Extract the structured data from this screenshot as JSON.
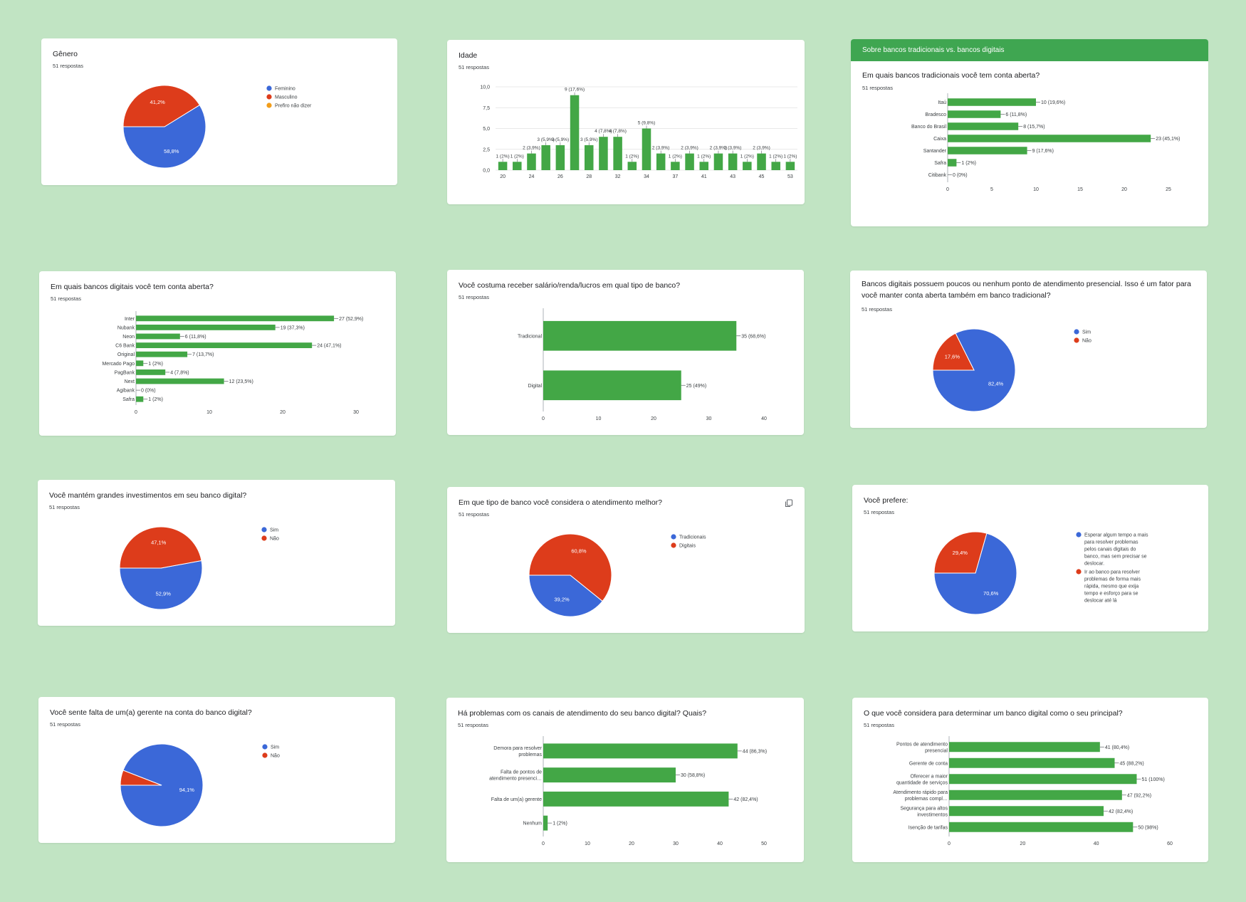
{
  "colors": {
    "green": "#43a746",
    "blue": "#3b68d8",
    "red": "#dd3c1b",
    "orange": "#f29d1a",
    "header": "#3fa651"
  },
  "icons": {
    "copy": "copy-icon"
  },
  "section_header": "Sobre bancos tradicionais vs. bancos digitais",
  "chart_data": [
    {
      "id": "genero",
      "type": "pie",
      "title": "Gênero",
      "responses": "51 respostas",
      "legend_position": "right",
      "slices": [
        {
          "name": "Feminino",
          "value": 58.8,
          "label": "58,8%"
        },
        {
          "name": "Masculino",
          "value": 41.2,
          "label": "41,2%"
        },
        {
          "name": "Prefiro não dizer",
          "value": 0,
          "label": ""
        }
      ]
    },
    {
      "id": "idade",
      "type": "bar",
      "title": "Idade",
      "responses": "51 respostas",
      "ylim": [
        0,
        10
      ],
      "yticks": [
        "0,0",
        "2,5",
        "5,0",
        "7,5",
        "10,0"
      ],
      "xtick_labels": [
        "20",
        "24",
        "26",
        "28",
        "32",
        "34",
        "37",
        "41",
        "43",
        "45",
        "53"
      ],
      "values": [
        1,
        1,
        2,
        3,
        3,
        9,
        3,
        4,
        4,
        1,
        5,
        2,
        1,
        2,
        1,
        2,
        2,
        1,
        2,
        1,
        1
      ],
      "labels": [
        "1 (2%)",
        "1 (2%)",
        "2 (3,9%)",
        "3 (5,9%)",
        "3 (5,9%)",
        "9 (17,6%)",
        "3 (5,9%)",
        "4 (7,8%)",
        "4 (7,8%)",
        "1 (2%)",
        "5 (9,8%)",
        "2 (3,9%)",
        "1 (2%)",
        "2 (3,9%)",
        "1 (2%)",
        "2 (3,9%)",
        "2 (3,9%)",
        "1 (2%)",
        "2 (3,9%)",
        "1 (2%)",
        "1 (2%)"
      ]
    },
    {
      "id": "tradicionais",
      "type": "hbar",
      "title": "Em quais bancos tradicionais você tem conta aberta?",
      "responses": "51 respostas",
      "xlim": [
        0,
        25
      ],
      "xticks": [
        0,
        5,
        10,
        15,
        20,
        25
      ],
      "categories": [
        "Itaú",
        "Bradesco",
        "Banco do Brasil",
        "Caixa",
        "Santander",
        "Safra",
        "Citibank"
      ],
      "values": [
        10,
        6,
        8,
        23,
        9,
        1,
        0
      ],
      "labels": [
        "10 (19,6%)",
        "6 (11,8%)",
        "8 (15,7%)",
        "23 (45,1%)",
        "9 (17,6%)",
        "1 (2%)",
        "0 (0%)"
      ]
    },
    {
      "id": "digitais",
      "type": "hbar",
      "title": "Em quais bancos digitais você tem conta aberta?",
      "responses": "51 respostas",
      "xlim": [
        0,
        30
      ],
      "xticks": [
        0,
        10,
        20,
        30
      ],
      "categories": [
        "Inter",
        "Nubank",
        "Neon",
        "C6 Bank",
        "Original",
        "Mercado Pago",
        "PagBank",
        "Next",
        "Agibank",
        "Safra"
      ],
      "values": [
        27,
        19,
        6,
        24,
        7,
        1,
        4,
        12,
        0,
        1
      ],
      "labels": [
        "27 (52,9%)",
        "19 (37,3%)",
        "6 (11,8%)",
        "24 (47,1%)",
        "7 (13,7%)",
        "1 (2%)",
        "4 (7,8%)",
        "12 (23,5%)",
        "0 (0%)",
        "1 (2%)"
      ]
    },
    {
      "id": "salario",
      "type": "hbar",
      "title": "Você costuma receber salário/renda/lucros em qual tipo de banco?",
      "responses": "51 respostas",
      "xlim": [
        0,
        40
      ],
      "xticks": [
        0,
        10,
        20,
        30,
        40
      ],
      "categories": [
        "Tradicional",
        "Digital"
      ],
      "values": [
        35,
        25
      ],
      "labels": [
        "35 (68,6%)",
        "25 (49%)"
      ]
    },
    {
      "id": "atendimento_presencial",
      "type": "pie",
      "title": "Bancos digitais possuem poucos ou nenhum ponto de atendimento presencial. Isso é um fator para você manter conta aberta também em banco tradicional?",
      "responses": "51 respostas",
      "legend_position": "right",
      "slices": [
        {
          "name": "Sim",
          "value": 82.4,
          "label": "82,4%"
        },
        {
          "name": "Não",
          "value": 17.6,
          "label": "17,6%"
        }
      ]
    },
    {
      "id": "investimentos",
      "type": "pie",
      "title": "Você mantém grandes investimentos em seu banco digital?",
      "responses": "51 respostas",
      "legend_position": "right",
      "slices": [
        {
          "name": "Sim",
          "value": 52.9,
          "label": "52,9%"
        },
        {
          "name": "Não",
          "value": 47.1,
          "label": "47,1%"
        }
      ]
    },
    {
      "id": "atendimento_melhor",
      "type": "pie",
      "title": "Em que tipo de banco você considera o atendimento melhor?",
      "responses": "51 respostas",
      "legend_position": "right",
      "slices": [
        {
          "name": "Tradicionais",
          "value": 39.2,
          "label": "39,2%"
        },
        {
          "name": "Digitais",
          "value": 60.8,
          "label": "60,8%"
        }
      ]
    },
    {
      "id": "prefere",
      "type": "pie",
      "title": "Você prefere:",
      "responses": "51 respostas",
      "legend_position": "right",
      "slices": [
        {
          "name": "Esperar algum tempo a mais para resolver problemas pelos canais digitais do banco, mas sem precisar se deslocar.",
          "value": 70.6,
          "label": "70,6%"
        },
        {
          "name": "Ir ao banco para resolver problemas de forma mais rápida, mesmo que exija tempo e esforço para se deslocar até lá",
          "value": 29.4,
          "label": "29,4%"
        }
      ]
    },
    {
      "id": "gerente",
      "type": "pie",
      "title": "Você sente falta de um(a) gerente na conta do banco digital?",
      "responses": "51 respostas",
      "legend_position": "right",
      "slices": [
        {
          "name": "Sim",
          "value": 94.1,
          "label": "94,1%"
        },
        {
          "name": "Não",
          "value": 5.9,
          "label": ""
        }
      ]
    },
    {
      "id": "problemas",
      "type": "hbar",
      "title": "Há problemas com os canais de atendimento do seu banco digital? Quais?",
      "responses": "51 respostas",
      "xlim": [
        0,
        50
      ],
      "xticks": [
        0,
        10,
        20,
        30,
        40,
        50
      ],
      "categories": [
        "Demora para resolver problemas",
        "Falta de pontos de atendimento presenci…",
        "Falta de um(a) gerente",
        "Nenhum"
      ],
      "values": [
        44,
        30,
        42,
        1
      ],
      "labels": [
        "44 (86,3%)",
        "30 (58,8%)",
        "42 (82,4%)",
        "1 (2%)"
      ]
    },
    {
      "id": "principal",
      "type": "hbar",
      "title": "O que você considera para determinar um banco digital como o seu principal?",
      "responses": "51 respostas",
      "xlim": [
        0,
        60
      ],
      "xticks": [
        0,
        20,
        40,
        60
      ],
      "categories": [
        "Pontos de atendimento presencial",
        "Gerente de conta",
        "Oferecer a maior quantidade de serviços",
        "Atendimento rápido para problemas compl…",
        "Segurança para altos investimentos",
        "Isenção de tarifas"
      ],
      "values": [
        41,
        45,
        51,
        47,
        42,
        50
      ],
      "labels": [
        "41 (80,4%)",
        "45 (88,2%)",
        "51 (100%)",
        "47 (92,2%)",
        "42 (82,4%)",
        "50 (98%)"
      ]
    }
  ]
}
